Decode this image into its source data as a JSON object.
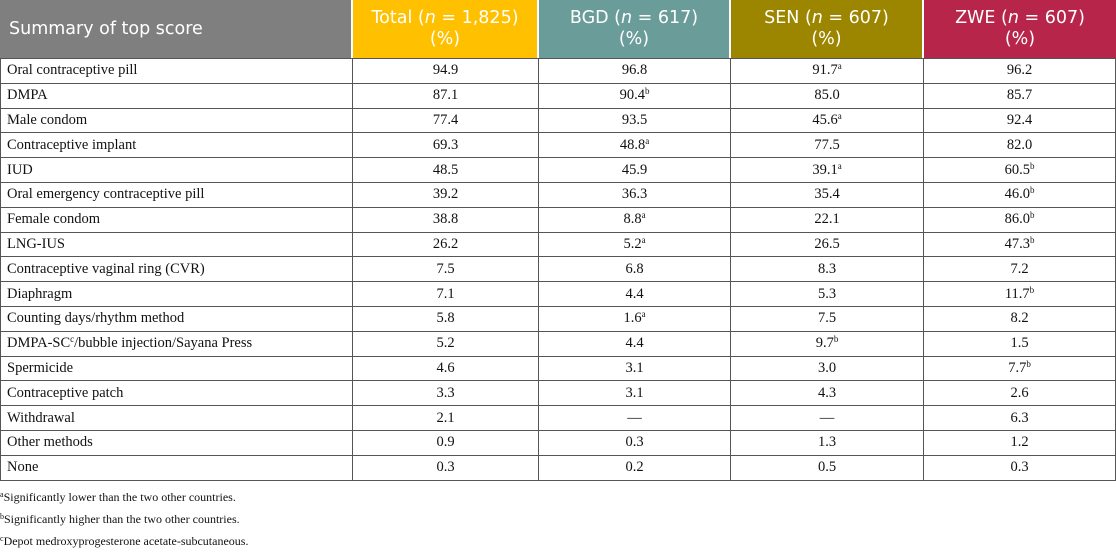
{
  "header": {
    "col0": "Summary of top score",
    "col1": {
      "name": "Total",
      "n_label": "n",
      "n_value": " = 1,825)",
      "unit": "(%)"
    },
    "col2": {
      "name": "BGD",
      "n_label": "n",
      "n_value": " = 617)",
      "unit": "(%)"
    },
    "col3": {
      "name": "SEN",
      "n_label": "n",
      "n_value": " = 607)",
      "unit": "(%)"
    },
    "col4": {
      "name": "ZWE",
      "n_label": "n",
      "n_value": " = 607)",
      "unit": "(%)"
    },
    "colors": {
      "col0": "#7f7f7f",
      "col1": "#ffc000",
      "col2": "#6a9c9a",
      "col3": "#9c8600",
      "col4": "#b7264a"
    }
  },
  "rows": [
    {
      "label": "Oral contraceptive pill",
      "label_sup": "",
      "label_after": "",
      "cells": [
        {
          "v": "94.9",
          "s": ""
        },
        {
          "v": "96.8",
          "s": ""
        },
        {
          "v": "91.7",
          "s": "a"
        },
        {
          "v": "96.2",
          "s": ""
        }
      ]
    },
    {
      "label": "DMPA",
      "label_sup": "",
      "label_after": "",
      "cells": [
        {
          "v": "87.1",
          "s": ""
        },
        {
          "v": "90.4",
          "s": "b"
        },
        {
          "v": "85.0",
          "s": ""
        },
        {
          "v": "85.7",
          "s": ""
        }
      ]
    },
    {
      "label": "Male condom",
      "label_sup": "",
      "label_after": "",
      "cells": [
        {
          "v": "77.4",
          "s": ""
        },
        {
          "v": "93.5",
          "s": ""
        },
        {
          "v": "45.6",
          "s": "a"
        },
        {
          "v": "92.4",
          "s": ""
        }
      ]
    },
    {
      "label": "Contraceptive implant",
      "label_sup": "",
      "label_after": "",
      "cells": [
        {
          "v": "69.3",
          "s": ""
        },
        {
          "v": "48.8",
          "s": "a"
        },
        {
          "v": "77.5",
          "s": ""
        },
        {
          "v": "82.0",
          "s": ""
        }
      ]
    },
    {
      "label": "IUD",
      "label_sup": "",
      "label_after": "",
      "cells": [
        {
          "v": "48.5",
          "s": ""
        },
        {
          "v": "45.9",
          "s": ""
        },
        {
          "v": "39.1",
          "s": "a"
        },
        {
          "v": "60.5",
          "s": "b"
        }
      ]
    },
    {
      "label": "Oral emergency contraceptive pill",
      "label_sup": "",
      "label_after": "",
      "cells": [
        {
          "v": "39.2",
          "s": ""
        },
        {
          "v": "36.3",
          "s": ""
        },
        {
          "v": "35.4",
          "s": ""
        },
        {
          "v": "46.0",
          "s": "b"
        }
      ]
    },
    {
      "label": "Female condom",
      "label_sup": "",
      "label_after": "",
      "cells": [
        {
          "v": "38.8",
          "s": ""
        },
        {
          "v": "8.8",
          "s": "a"
        },
        {
          "v": "22.1",
          "s": ""
        },
        {
          "v": "86.0",
          "s": "b"
        }
      ]
    },
    {
      "label": "LNG-IUS",
      "label_sup": "",
      "label_after": "",
      "cells": [
        {
          "v": "26.2",
          "s": ""
        },
        {
          "v": "5.2",
          "s": "a"
        },
        {
          "v": "26.5",
          "s": ""
        },
        {
          "v": "47.3",
          "s": "b"
        }
      ]
    },
    {
      "label": "Contraceptive vaginal ring (CVR)",
      "label_sup": "",
      "label_after": "",
      "cells": [
        {
          "v": "7.5",
          "s": ""
        },
        {
          "v": "6.8",
          "s": ""
        },
        {
          "v": "8.3",
          "s": ""
        },
        {
          "v": "7.2",
          "s": ""
        }
      ]
    },
    {
      "label": "Diaphragm",
      "label_sup": "",
      "label_after": "",
      "cells": [
        {
          "v": "7.1",
          "s": ""
        },
        {
          "v": "4.4",
          "s": ""
        },
        {
          "v": "5.3",
          "s": ""
        },
        {
          "v": "11.7",
          "s": "b"
        }
      ]
    },
    {
      "label": "Counting days/rhythm method",
      "label_sup": "",
      "label_after": "",
      "cells": [
        {
          "v": "5.8",
          "s": ""
        },
        {
          "v": "1.6",
          "s": "a"
        },
        {
          "v": "7.5",
          "s": ""
        },
        {
          "v": "8.2",
          "s": ""
        }
      ]
    },
    {
      "label": "DMPA-SC",
      "label_sup": "c",
      "label_after": "/bubble injection/Sayana Press",
      "cells": [
        {
          "v": "5.2",
          "s": ""
        },
        {
          "v": "4.4",
          "s": ""
        },
        {
          "v": "9.7",
          "s": "b"
        },
        {
          "v": "1.5",
          "s": ""
        }
      ]
    },
    {
      "label": "Spermicide",
      "label_sup": "",
      "label_after": "",
      "cells": [
        {
          "v": "4.6",
          "s": ""
        },
        {
          "v": "3.1",
          "s": ""
        },
        {
          "v": "3.0",
          "s": ""
        },
        {
          "v": "7.7",
          "s": "b"
        }
      ]
    },
    {
      "label": "Contraceptive patch",
      "label_sup": "",
      "label_after": "",
      "cells": [
        {
          "v": "3.3",
          "s": ""
        },
        {
          "v": "3.1",
          "s": ""
        },
        {
          "v": "4.3",
          "s": ""
        },
        {
          "v": "2.6",
          "s": ""
        }
      ]
    },
    {
      "label": "Withdrawal",
      "label_sup": "",
      "label_after": "",
      "cells": [
        {
          "v": "2.1",
          "s": ""
        },
        {
          "v": "—",
          "s": ""
        },
        {
          "v": "—",
          "s": ""
        },
        {
          "v": "6.3",
          "s": ""
        }
      ]
    },
    {
      "label": "Other methods",
      "label_sup": "",
      "label_after": "",
      "cells": [
        {
          "v": "0.9",
          "s": ""
        },
        {
          "v": "0.3",
          "s": ""
        },
        {
          "v": "1.3",
          "s": ""
        },
        {
          "v": "1.2",
          "s": ""
        }
      ]
    },
    {
      "label": "None",
      "label_sup": "",
      "label_after": "",
      "cells": [
        {
          "v": "0.3",
          "s": ""
        },
        {
          "v": "0.2",
          "s": ""
        },
        {
          "v": "0.5",
          "s": ""
        },
        {
          "v": "0.3",
          "s": ""
        }
      ]
    }
  ],
  "footnotes": [
    {
      "mark": "a",
      "text": "Significantly lower than the two other countries."
    },
    {
      "mark": "b",
      "text": "Significantly higher than the two other countries."
    },
    {
      "mark": "c",
      "text": "Depot medroxyprogesterone acetate-subcutaneous."
    }
  ]
}
